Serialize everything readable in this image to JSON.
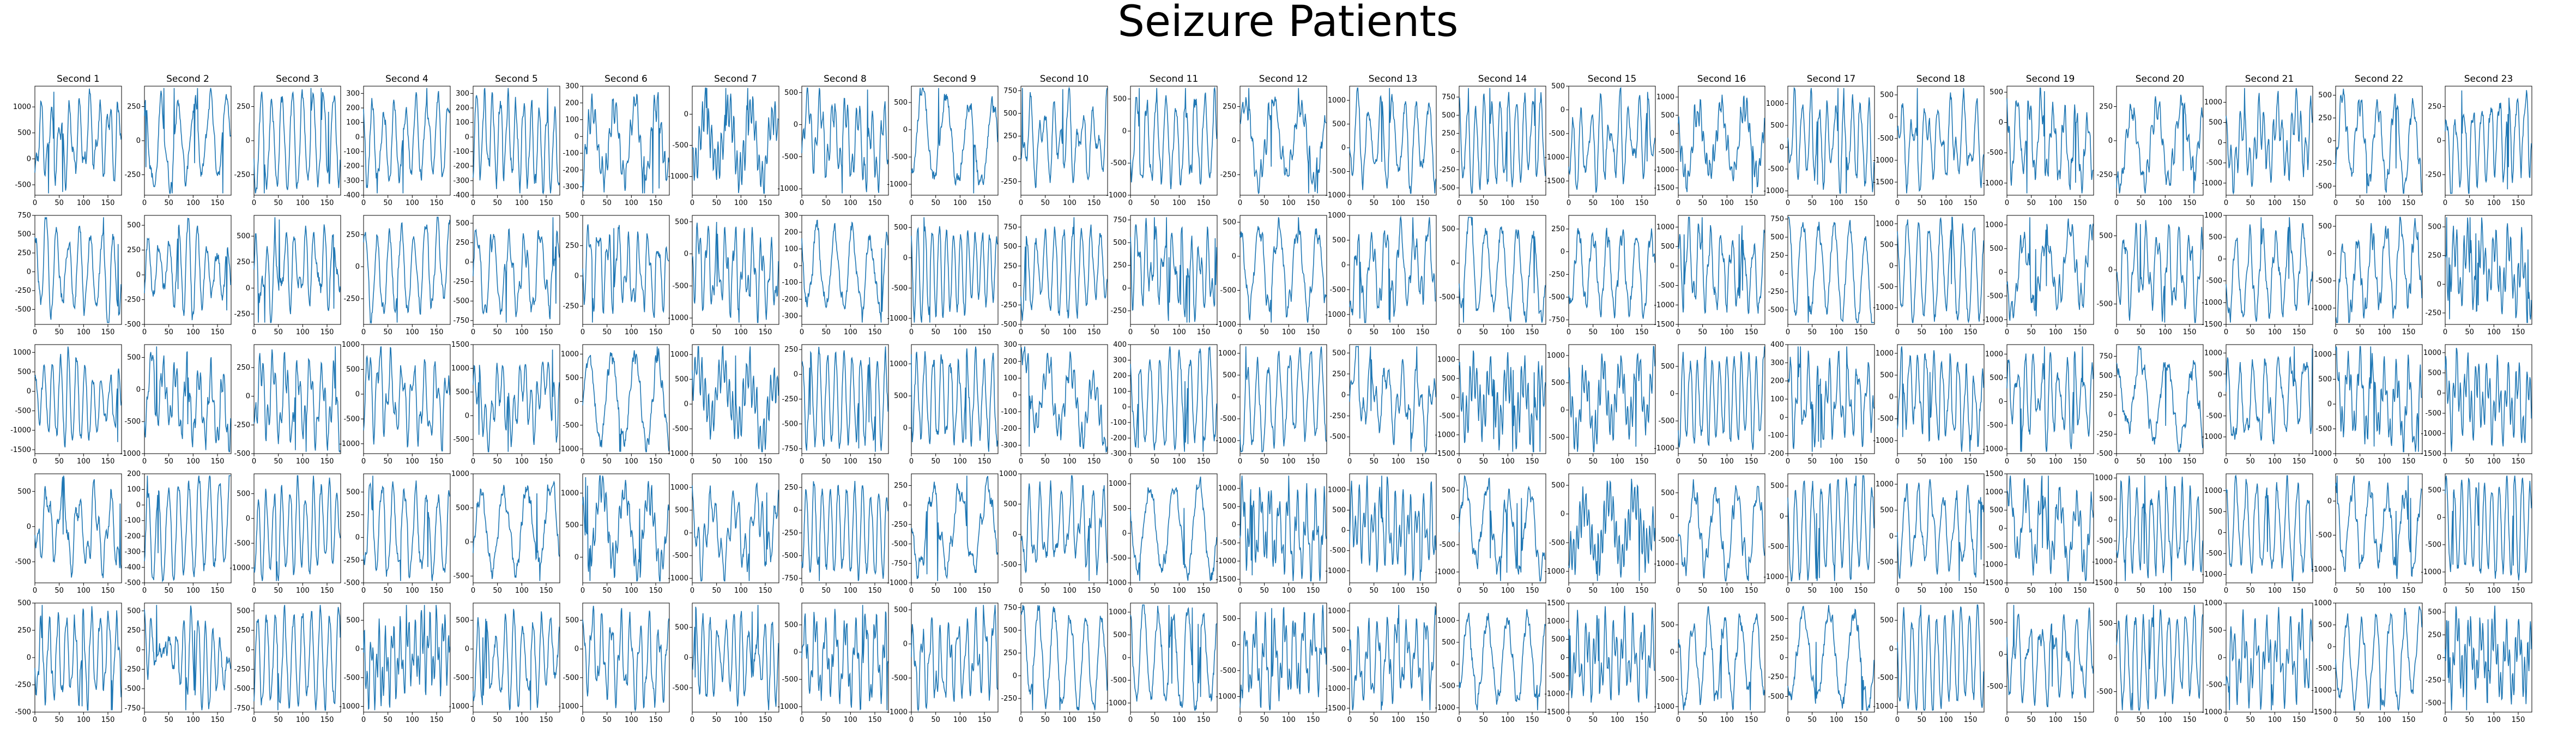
{
  "figure": {
    "title": "Seizure Patients"
  },
  "colors": {
    "line": "#1f77b4",
    "axis": "#000000"
  },
  "chart_data": {
    "type": "line",
    "layout": "grid of 5 rows x 23 columns of small line plots",
    "column_titles": [
      "Second 1",
      "Second 2",
      "Second 3",
      "Second 4",
      "Second 5",
      "Second 6",
      "Second 7",
      "Second 8",
      "Second 9",
      "Second 10",
      "Second 11",
      "Second 12",
      "Second 13",
      "Second 14",
      "Second 15",
      "Second 16",
      "Second 17",
      "Second 18",
      "Second 19",
      "Second 20",
      "Second 21",
      "Second 22",
      "Second 23"
    ],
    "x_range": [
      0,
      178
    ],
    "x_ticks": [
      0,
      50,
      100,
      150
    ],
    "ylim_by_panel": [
      [
        [
          -700,
          1400
        ],
        [
          -400,
          400
        ],
        [
          -400,
          400
        ],
        [
          -400,
          350
        ],
        [
          -400,
          350
        ],
        [
          -350,
          300
        ],
        [
          -1300,
          450
        ],
        [
          -1100,
          600
        ],
        [
          -1200,
          800
        ],
        [
          -400,
          800
        ],
        [
          -1000,
          700
        ],
        [
          -400,
          400
        ],
        [
          -1000,
          1300
        ],
        [
          -600,
          900
        ],
        [
          -1800,
          500
        ],
        [
          -1700,
          1300
        ],
        [
          -1100,
          1400
        ],
        [
          -1800,
          700
        ],
        [
          -1200,
          600
        ],
        [
          -400,
          400
        ],
        [
          -1300,
          1400
        ],
        [
          -600,
          600
        ],
        [
          -400,
          400
        ]
      ],
      [
        [
          -700,
          750
        ],
        [
          -500,
          600
        ],
        [
          -350,
          700
        ],
        [
          -450,
          400
        ],
        [
          -800,
          600
        ],
        [
          -400,
          500
        ],
        [
          -1100,
          600
        ],
        [
          -350,
          300
        ],
        [
          -1100,
          700
        ],
        [
          -500,
          900
        ],
        [
          -400,
          800
        ],
        [
          -1000,
          600
        ],
        [
          -1200,
          1000
        ],
        [
          -900,
          700
        ],
        [
          -800,
          400
        ],
        [
          -1500,
          1300
        ],
        [
          -700,
          800
        ],
        [
          -1400,
          1200
        ],
        [
          -1100,
          1200
        ],
        [
          -800,
          800
        ],
        [
          -1500,
          1000
        ],
        [
          -1300,
          700
        ],
        [
          -350,
          600
        ]
      ],
      [
        [
          -1600,
          1200
        ],
        [
          -1000,
          700
        ],
        [
          -500,
          450
        ],
        [
          -1200,
          1000
        ],
        [
          -800,
          1500
        ],
        [
          -1100,
          1200
        ],
        [
          -1000,
          1200
        ],
        [
          -800,
          300
        ],
        [
          -400,
          1300
        ],
        [
          -350,
          300
        ],
        [
          -300,
          400
        ],
        [
          -1300,
          1200
        ],
        [
          -700,
          600
        ],
        [
          -1500,
          1400
        ],
        [
          -800,
          1200
        ],
        [
          -1100,
          900
        ],
        [
          -200,
          400
        ],
        [
          -1300,
          1200
        ],
        [
          -1100,
          1200
        ],
        [
          -500,
          900
        ],
        [
          -1400,
          1200
        ],
        [
          -1000,
          1200
        ],
        [
          -1500,
          1200
        ]
      ],
      [
        [
          -800,
          750
        ],
        [
          -500,
          200
        ],
        [
          -1300,
          900
        ],
        [
          -500,
          700
        ],
        [
          -600,
          1000
        ],
        [
          -400,
          1300
        ],
        [
          -1100,
          1300
        ],
        [
          -800,
          400
        ],
        [
          -1000,
          400
        ],
        [
          -800,
          1000
        ],
        [
          -1000,
          1200
        ],
        [
          -1600,
          1400
        ],
        [
          -1300,
          1400
        ],
        [
          -1200,
          800
        ],
        [
          -1200,
          700
        ],
        [
          -1400,
          900
        ],
        [
          -1100,
          700
        ],
        [
          -900,
          1200
        ],
        [
          -1500,
          1500
        ],
        [
          -1500,
          1100
        ],
        [
          -1200,
          1400
        ],
        [
          -1200,
          400
        ],
        [
          -1200,
          800
        ]
      ],
      [
        [
          -500,
          500
        ],
        [
          -800,
          600
        ],
        [
          -800,
          600
        ],
        [
          -1100,
          800
        ],
        [
          -1100,
          800
        ],
        [
          -1100,
          800
        ],
        [
          -900,
          900
        ],
        [
          -1100,
          900
        ],
        [
          -1000,
          600
        ],
        [
          -400,
          800
        ],
        [
          -1200,
          1200
        ],
        [
          -1300,
          800
        ],
        [
          -1600,
          1200
        ],
        [
          -1100,
          1400
        ],
        [
          -1500,
          1500
        ],
        [
          -1100,
          900
        ],
        [
          -700,
          700
        ],
        [
          -1100,
          800
        ],
        [
          -900,
          800
        ],
        [
          -800,
          800
        ],
        [
          -1000,
          1000
        ],
        [
          -1500,
          1000
        ],
        [
          -600,
          600
        ]
      ]
    ],
    "series_description": "blue EEG traces, one per panel (5 patients x 23 seconds, 178 samples each)"
  }
}
